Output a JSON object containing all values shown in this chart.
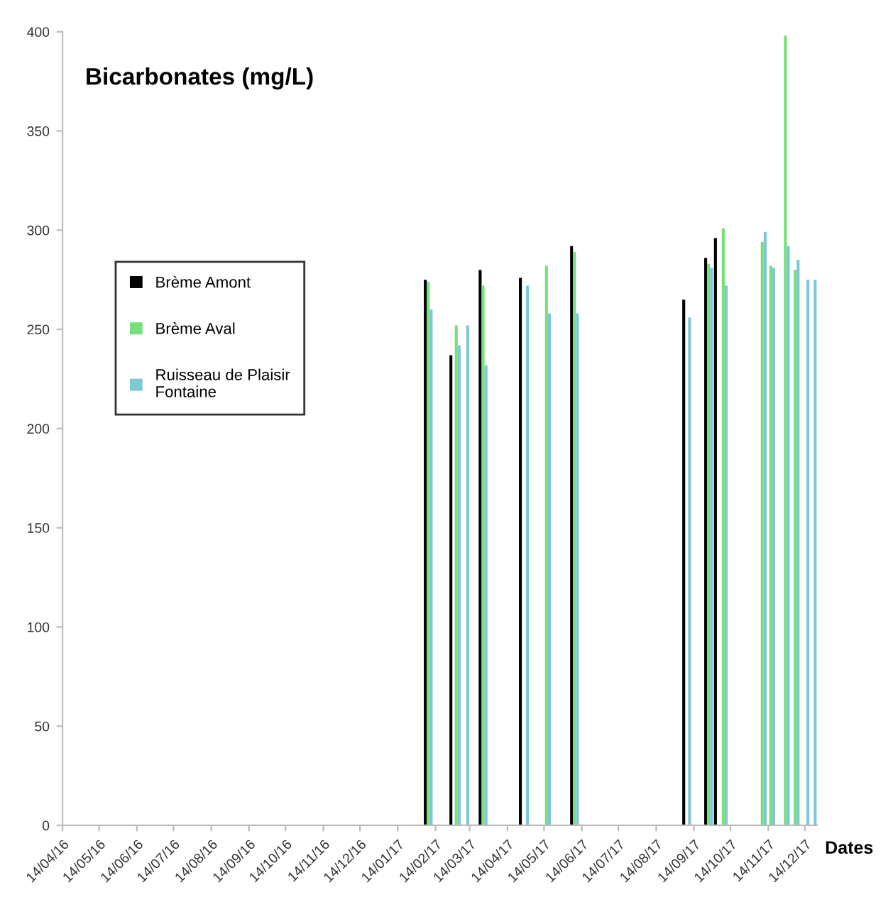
{
  "chart_data": {
    "type": "bar",
    "title": "Bicarbonates (mg/L)",
    "xlabel": "Dates",
    "series": [
      {
        "name": "Brème Amont",
        "color": "#000000",
        "x": [
          "2017-02-08",
          "2017-03-01",
          "2017-03-25",
          "2017-04-27",
          "2017-06-08",
          "2017-09-08",
          "2017-09-26",
          "2017-10-04"
        ],
        "values": [
          275,
          237,
          280,
          276,
          292,
          265,
          286,
          296
        ]
      },
      {
        "name": "Brème Aval",
        "color": "#77e07a",
        "x": [
          "2017-02-08",
          "2017-03-03",
          "2017-03-25",
          "2017-05-16",
          "2017-06-08",
          "2017-09-26",
          "2017-10-08",
          "2017-11-09",
          "2017-11-16",
          "2017-11-28",
          "2017-12-06"
        ],
        "values": [
          274,
          252,
          272,
          282,
          289,
          283,
          301,
          294,
          282,
          398,
          280
        ]
      },
      {
        "name": "Ruisseau de Plaisir\nFontaine",
        "color": "#7cc8d4",
        "x": [
          "2017-02-08",
          "2017-03-03",
          "2017-03-10",
          "2017-03-25",
          "2017-04-28",
          "2017-05-16",
          "2017-06-08",
          "2017-09-08",
          "2017-09-26",
          "2017-10-08",
          "2017-11-09",
          "2017-11-16",
          "2017-11-28",
          "2017-12-06",
          "2017-12-14",
          "2017-12-20"
        ],
        "values": [
          260,
          242,
          252,
          232,
          272,
          258,
          258,
          256,
          281,
          272,
          299,
          281,
          292,
          285,
          275,
          275
        ]
      }
    ],
    "xlim": [
      "2016-04-14",
      "2017-12-24"
    ],
    "xticks": [
      {
        "value": "2016-04-14",
        "label": "14/04/16"
      },
      {
        "value": "2016-05-14",
        "label": "14/05/16"
      },
      {
        "value": "2016-06-14",
        "label": "14/06/16"
      },
      {
        "value": "2016-07-14",
        "label": "14/07/16"
      },
      {
        "value": "2016-08-14",
        "label": "14/08/16"
      },
      {
        "value": "2016-09-14",
        "label": "14/09/16"
      },
      {
        "value": "2016-10-14",
        "label": "14/10/16"
      },
      {
        "value": "2016-11-14",
        "label": "14/11/16"
      },
      {
        "value": "2016-12-14",
        "label": "14/12/16"
      },
      {
        "value": "2017-01-14",
        "label": "14/01/17"
      },
      {
        "value": "2017-02-14",
        "label": "14/02/17"
      },
      {
        "value": "2017-03-14",
        "label": "14/03/17"
      },
      {
        "value": "2017-04-14",
        "label": "14/04/17"
      },
      {
        "value": "2017-05-14",
        "label": "14/05/17"
      },
      {
        "value": "2017-06-14",
        "label": "14/06/17"
      },
      {
        "value": "2017-07-14",
        "label": "14/07/17"
      },
      {
        "value": "2017-08-14",
        "label": "14/08/17"
      },
      {
        "value": "2017-09-14",
        "label": "14/09/17"
      },
      {
        "value": "2017-10-14",
        "label": "14/10/17"
      },
      {
        "value": "2017-11-14",
        "label": "14/11/17"
      },
      {
        "value": "2017-12-14",
        "label": "14/12/17"
      }
    ],
    "ylim": [
      0,
      400
    ],
    "yticks": [
      0,
      50,
      100,
      150,
      200,
      250,
      300,
      350,
      400
    ],
    "grid": false,
    "legend": "top left"
  }
}
